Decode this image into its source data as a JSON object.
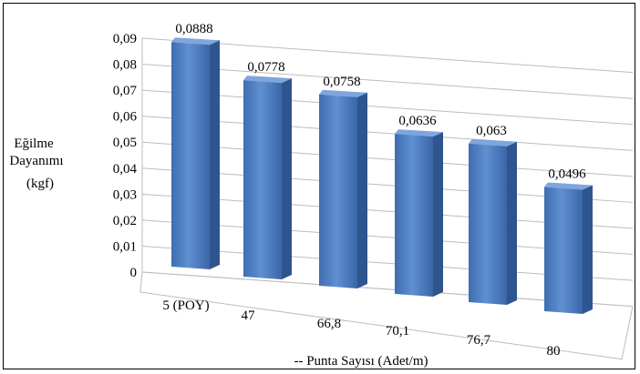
{
  "chart_data": {
    "type": "bar",
    "title": "",
    "xlabel": "-- Punta Sayısı (Adet/m)",
    "ylabel_lines": [
      "Eğilme",
      "Dayanımı",
      "(kgf)"
    ],
    "categories": [
      "5 (POY)",
      "47",
      "66,8",
      "70,1",
      "76,7",
      "80"
    ],
    "values": [
      0.0888,
      0.0778,
      0.0758,
      0.0636,
      0.063,
      0.0496
    ],
    "value_labels": [
      "0,0888",
      "0,0778",
      "0,0758",
      "0,0636",
      "0,063",
      "0,0496"
    ],
    "y_ticks": [
      "0",
      "0,01",
      "0,02",
      "0,03",
      "0,04",
      "0,05",
      "0,06",
      "0,07",
      "0,08",
      "0,09"
    ],
    "ylim": [
      0,
      0.09
    ],
    "grid": true,
    "legend": "none",
    "bar_color": "#4f7fc0"
  }
}
